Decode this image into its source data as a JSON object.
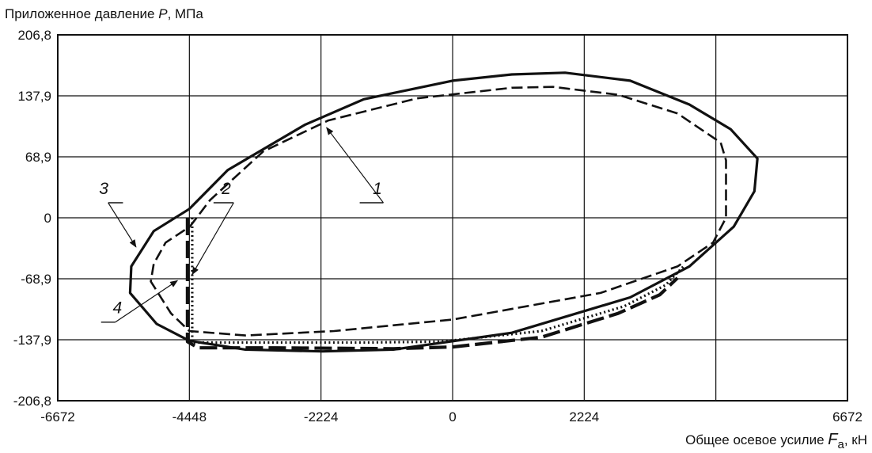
{
  "chart_data": {
    "type": "line",
    "ylabel_parts": [
      "Приложенное давление ",
      "P",
      ", МПа"
    ],
    "xlabel_parts": [
      "Общее осевое усилие ",
      "F",
      "a",
      ", кН"
    ],
    "xlim": [
      -6672,
      6672
    ],
    "ylim": [
      -206.8,
      206.8
    ],
    "x_ticks": [
      -6672,
      -4448,
      -2224,
      0,
      2224,
      6672
    ],
    "x_tick_labels": [
      "-6672",
      "-4448",
      "-2224",
      "0",
      "2224",
      "6672"
    ],
    "x_gridlines": [
      -4448,
      -2224,
      0,
      2224,
      4448
    ],
    "y_ticks": [
      206.8,
      137.9,
      68.9,
      0,
      -68.9,
      -137.9,
      -206.8
    ],
    "y_tick_labels": [
      "206,8",
      "137,9",
      "68,9",
      "0",
      "-68,9",
      "-137,9",
      "-206,8"
    ],
    "y_gridlines": [
      137.9,
      68.9,
      0,
      -68.9,
      -137.9
    ],
    "grid": true,
    "series": [
      {
        "label": "1",
        "style": "dashed",
        "points": [
          [
            -4440,
            -10
          ],
          [
            -4100,
            20
          ],
          [
            -3200,
            75
          ],
          [
            -2100,
            110
          ],
          [
            -600,
            135
          ],
          [
            1000,
            147
          ],
          [
            1700,
            148
          ],
          [
            2800,
            139
          ],
          [
            3800,
            118
          ],
          [
            4530,
            85
          ],
          [
            4620,
            65
          ],
          [
            4620,
            0
          ],
          [
            4400,
            -28
          ],
          [
            3800,
            -55
          ],
          [
            2500,
            -85
          ],
          [
            0,
            -115
          ],
          [
            -2000,
            -128
          ],
          [
            -3500,
            -133
          ],
          [
            -4450,
            -128
          ],
          [
            -4760,
            -108
          ],
          [
            -5100,
            -72
          ],
          [
            -5050,
            -52
          ],
          [
            -4850,
            -28
          ],
          [
            -4440,
            -10
          ]
        ]
      },
      {
        "label": "2",
        "style": "dotted",
        "points": [
          [
            -4400,
            0
          ],
          [
            -4400,
            -141
          ],
          [
            -3500,
            -141
          ],
          [
            -1500,
            -141
          ],
          [
            -200,
            -140
          ],
          [
            1500,
            -128
          ],
          [
            2900,
            -100
          ],
          [
            3600,
            -76
          ],
          [
            3900,
            -55
          ]
        ]
      },
      {
        "label": "3",
        "style": "solid",
        "points": [
          [
            -4448,
            10
          ],
          [
            -3800,
            54
          ],
          [
            -2500,
            105
          ],
          [
            -1500,
            134
          ],
          [
            0,
            155
          ],
          [
            1000,
            162
          ],
          [
            1900,
            164
          ],
          [
            3000,
            155
          ],
          [
            4000,
            128
          ],
          [
            4700,
            100
          ],
          [
            5150,
            67
          ],
          [
            5100,
            30
          ],
          [
            4750,
            -10
          ],
          [
            4000,
            -55
          ],
          [
            3000,
            -90
          ],
          [
            1000,
            -130
          ],
          [
            -1000,
            -149
          ],
          [
            -2200,
            -151
          ],
          [
            -3500,
            -149
          ],
          [
            -4448,
            -139
          ],
          [
            -5000,
            -120
          ],
          [
            -5450,
            -85
          ],
          [
            -5430,
            -55
          ],
          [
            -5050,
            -15
          ],
          [
            -4448,
            10
          ]
        ]
      },
      {
        "label": "4",
        "style": "long-dashed",
        "points": [
          [
            -4480,
            0
          ],
          [
            -4480,
            -140
          ],
          [
            -4300,
            -147
          ],
          [
            -3000,
            -147
          ],
          [
            -1000,
            -148
          ],
          [
            0,
            -146
          ],
          [
            1500,
            -135
          ],
          [
            2800,
            -108
          ],
          [
            3500,
            -87
          ],
          [
            3800,
            -68
          ]
        ]
      }
    ],
    "callouts": [
      {
        "label": "1",
        "tip": [
          -2130,
          102
        ],
        "text_anchor": [
          -1170,
          17
        ],
        "text": [
          -1270,
          27
        ],
        "rule_to": [
          -1570,
          17
        ]
      },
      {
        "label": "2",
        "tip": [
          -4400,
          -64
        ],
        "text_anchor": [
          -3700,
          17
        ],
        "text": [
          -3825,
          27
        ],
        "rule_to": [
          -4040,
          17
        ]
      },
      {
        "label": "3",
        "tip": [
          -5350,
          -33
        ],
        "text_anchor": [
          -5820,
          17
        ],
        "text": [
          -5895,
          27
        ],
        "rule_to": [
          -5570,
          17
        ]
      },
      {
        "label": "4",
        "tip": [
          -4650,
          -71
        ],
        "text_anchor": [
          -5700,
          -118
        ],
        "text": [
          -5665,
          -108
        ],
        "rule_to": [
          -5940,
          -118
        ]
      }
    ]
  }
}
